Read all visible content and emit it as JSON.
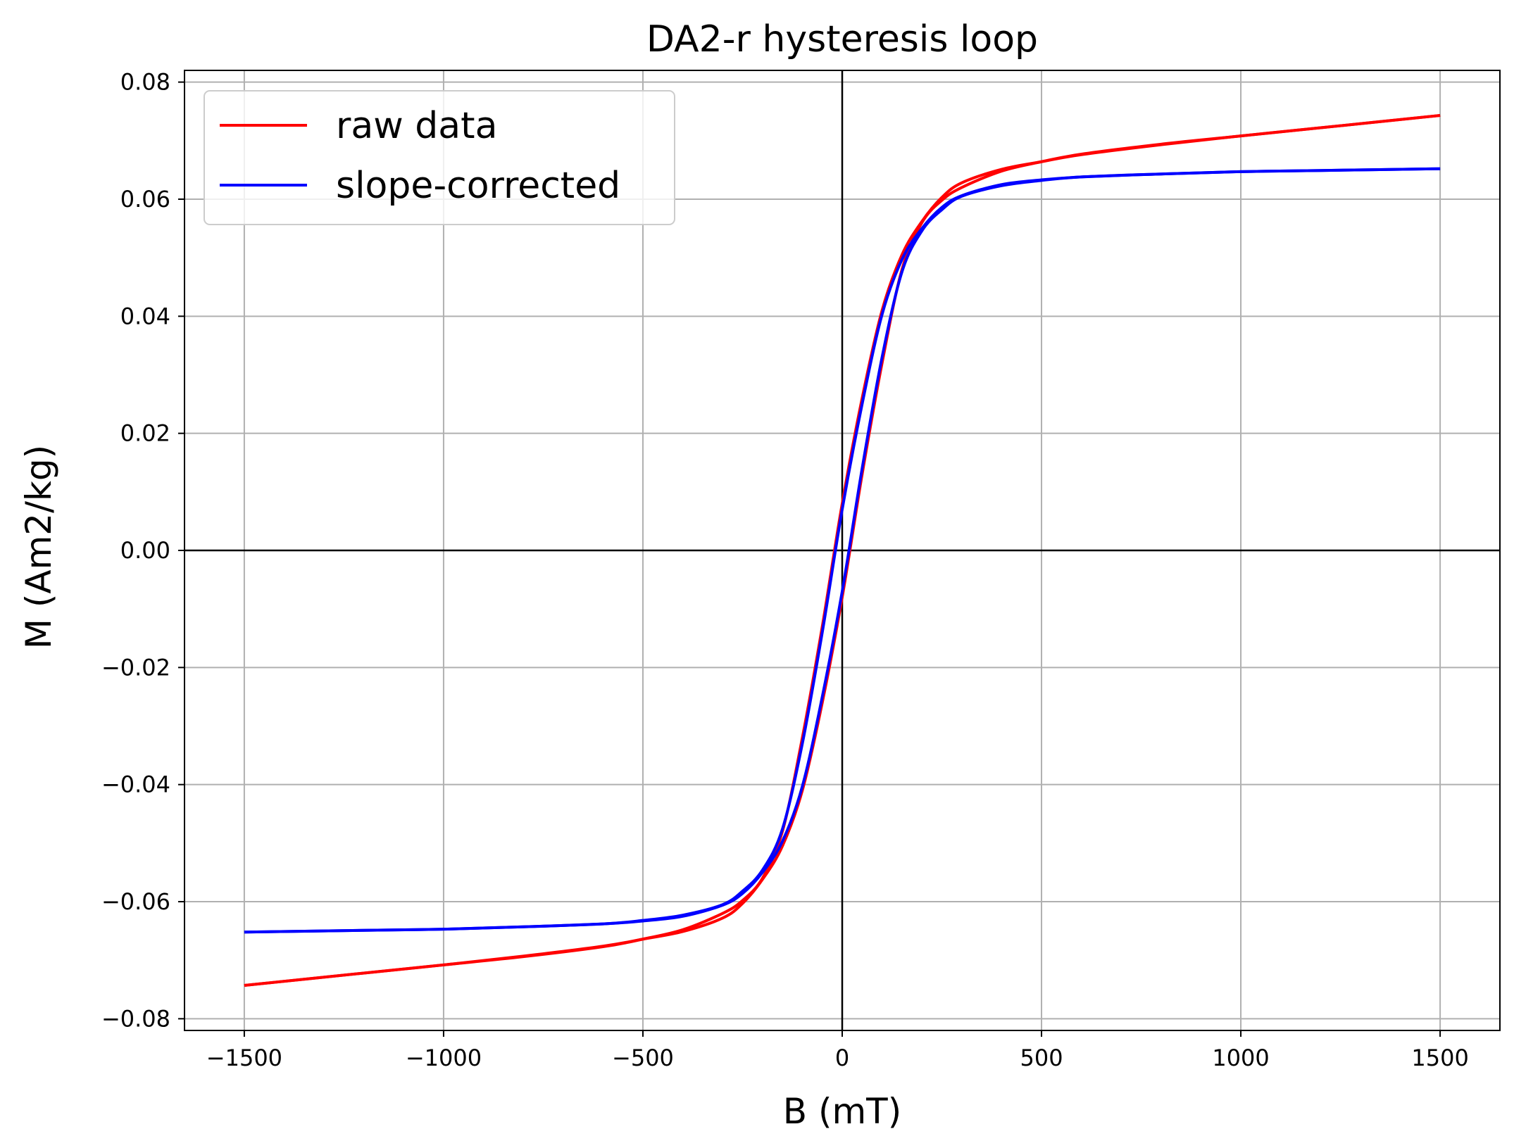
{
  "chart_data": {
    "type": "line",
    "title": "DA2-r hysteresis loop",
    "xlabel": "B (mT)",
    "ylabel": "M (Am2/kg)",
    "xlim": [
      -1650,
      1650
    ],
    "ylim": [
      -0.082,
      0.082
    ],
    "xticks": [
      -1500,
      -1000,
      -500,
      0,
      500,
      1000,
      1500
    ],
    "xtick_labels": [
      "−1500",
      "−1000",
      "−500",
      "0",
      "500",
      "1000",
      "1500"
    ],
    "yticks": [
      -0.08,
      -0.06,
      -0.04,
      -0.02,
      0.0,
      0.02,
      0.04,
      0.06,
      0.08
    ],
    "ytick_labels": [
      "−0.08",
      "−0.06",
      "−0.04",
      "−0.02",
      "0.00",
      "0.02",
      "0.04",
      "0.06",
      "0.08"
    ],
    "grid": true,
    "zero_lines": true,
    "legend_position": "upper-left",
    "series": [
      {
        "name": "raw data",
        "color": "#ff0000",
        "descending": {
          "x": [
            1500,
            1200,
            1000,
            800,
            600,
            500,
            400,
            300,
            250,
            200,
            150,
            100,
            50,
            0,
            -50,
            -100,
            -150,
            -200,
            -250,
            -300,
            -400,
            -500,
            -600,
            -800,
            -1000,
            -1200,
            -1500
          ],
          "y": [
            0.0743,
            0.0722,
            0.0708,
            0.0693,
            0.0676,
            0.0664,
            0.0651,
            0.0628,
            0.0603,
            0.0562,
            0.0505,
            0.041,
            0.026,
            0.008,
            -0.013,
            -0.032,
            -0.048,
            -0.056,
            -0.0598,
            -0.062,
            -0.0648,
            -0.0664,
            -0.0677,
            -0.0694,
            -0.0708,
            -0.0722,
            -0.0743
          ]
        },
        "ascending": {
          "x": [
            -1500,
            -1200,
            -1000,
            -800,
            -600,
            -500,
            -400,
            -300,
            -250,
            -200,
            -150,
            -100,
            -50,
            0,
            50,
            100,
            150,
            200,
            250,
            300,
            400,
            500,
            600,
            800,
            1000,
            1200,
            1500
          ],
          "y": [
            -0.0743,
            -0.0722,
            -0.0708,
            -0.0693,
            -0.0676,
            -0.0664,
            -0.0651,
            -0.0628,
            -0.0603,
            -0.0562,
            -0.0505,
            -0.041,
            -0.026,
            -0.008,
            0.013,
            0.032,
            0.048,
            0.056,
            0.0598,
            0.062,
            0.0648,
            0.0664,
            0.0677,
            0.0694,
            0.0708,
            0.0722,
            0.0743
          ]
        }
      },
      {
        "name": "slope-corrected",
        "color": "#0000ff",
        "descending": {
          "x": [
            1500,
            1200,
            1000,
            800,
            600,
            500,
            400,
            300,
            250,
            200,
            150,
            100,
            50,
            0,
            -50,
            -100,
            -150,
            -200,
            -250,
            -300,
            -400,
            -500,
            -600,
            -800,
            -1000,
            -1200,
            -1500
          ],
          "y": [
            0.0652,
            0.0649,
            0.0647,
            0.0643,
            0.0638,
            0.0633,
            0.0625,
            0.0606,
            0.0586,
            0.055,
            0.0497,
            0.0403,
            0.025,
            0.007,
            -0.014,
            -0.033,
            -0.0476,
            -0.0546,
            -0.0582,
            -0.0605,
            -0.0623,
            -0.0632,
            -0.0638,
            -0.0643,
            -0.0647,
            -0.0649,
            -0.0652
          ]
        },
        "ascending": {
          "x": [
            -1500,
            -1200,
            -1000,
            -800,
            -600,
            -500,
            -400,
            -300,
            -250,
            -200,
            -150,
            -100,
            -50,
            0,
            50,
            100,
            150,
            200,
            250,
            300,
            400,
            500,
            600,
            800,
            1000,
            1200,
            1500
          ],
          "y": [
            -0.0652,
            -0.0649,
            -0.0647,
            -0.0643,
            -0.0638,
            -0.0633,
            -0.0625,
            -0.0606,
            -0.0586,
            -0.055,
            -0.0497,
            -0.0403,
            -0.025,
            -0.007,
            0.014,
            0.033,
            0.0476,
            0.0546,
            0.0582,
            0.0605,
            0.0623,
            0.0632,
            0.0638,
            0.0643,
            0.0647,
            0.0649,
            0.0652
          ]
        }
      }
    ]
  }
}
